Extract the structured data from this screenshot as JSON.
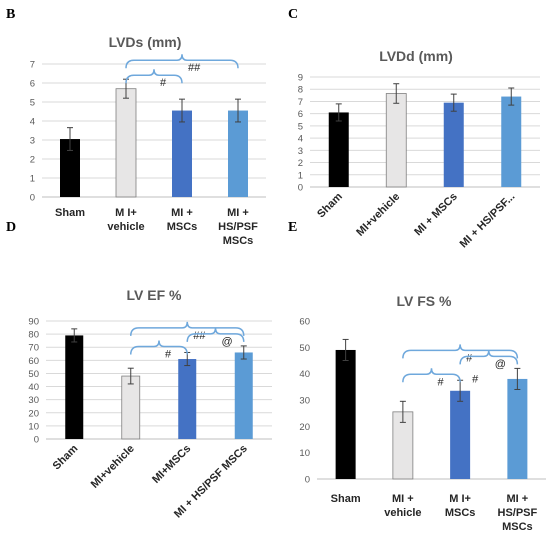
{
  "chart_data": [
    {
      "panel": "B",
      "type": "bar",
      "title": "LVDs (mm)",
      "categories": [
        "Sham",
        "M I+ vehicle",
        "MI + MSCs",
        "MI + HS/PSF MSCs"
      ],
      "values": [
        3.05,
        5.7,
        4.55,
        4.55
      ],
      "errors": [
        0.6,
        0.5,
        0.6,
        0.6
      ],
      "ylim": [
        0,
        7
      ],
      "yticks": [
        0,
        1,
        2,
        3,
        4,
        5,
        6,
        7
      ],
      "grid": true,
      "label_rotate": false,
      "colors": [
        "#000000",
        "#e7e6e6",
        "#4472c4",
        "#5b9bd5"
      ],
      "significance": [
        {
          "from": 1,
          "to": 2,
          "label": "#"
        },
        {
          "from": 1,
          "to": 3,
          "label": "##"
        }
      ]
    },
    {
      "panel": "C",
      "type": "bar",
      "title": "LVDd (mm)",
      "categories": [
        "Sham",
        "MI+vehicle",
        "MI + MSCs",
        "MI + HS/PSF..."
      ],
      "values": [
        6.1,
        7.65,
        6.9,
        7.4
      ],
      "errors": [
        0.7,
        0.8,
        0.7,
        0.7
      ],
      "ylim": [
        0,
        9
      ],
      "yticks": [
        0,
        1,
        2,
        3,
        4,
        5,
        6,
        7,
        8,
        9
      ],
      "grid": true,
      "label_rotate": true,
      "colors": [
        "#000000",
        "#e7e6e6",
        "#4472c4",
        "#5b9bd5"
      ],
      "significance": []
    },
    {
      "panel": "D",
      "type": "bar",
      "title": "LV EF %",
      "categories": [
        "Sham",
        "MI+vehicle",
        "MI+MSCs",
        "MI + HS/PSF MSCs"
      ],
      "values": [
        79,
        48,
        61,
        66
      ],
      "errors": [
        5,
        6,
        5,
        5
      ],
      "ylim": [
        0,
        90
      ],
      "yticks": [
        0,
        10,
        20,
        30,
        40,
        50,
        60,
        70,
        80,
        90
      ],
      "grid": true,
      "label_rotate": true,
      "colors": [
        "#000000",
        "#e7e6e6",
        "#4472c4",
        "#5b9bd5"
      ],
      "significance": [
        {
          "from": 1,
          "to": 2,
          "label": "#"
        },
        {
          "from": 1,
          "to": 3,
          "label": "##"
        },
        {
          "from": 2,
          "to": 3,
          "label": "@"
        }
      ]
    },
    {
      "panel": "E",
      "type": "bar",
      "title": "LV FS %",
      "categories": [
        "Sham",
        "MI + vehicle",
        "M I+ MSCs",
        "MI + HS/PSF MSCs"
      ],
      "values": [
        49,
        25.5,
        33.5,
        38
      ],
      "errors": [
        4,
        4,
        4,
        4
      ],
      "ylim": [
        0,
        60
      ],
      "yticks": [
        0,
        10,
        20,
        30,
        40,
        50,
        60
      ],
      "grid": false,
      "label_rotate": false,
      "colors": [
        "#000000",
        "#e7e6e6",
        "#4472c4",
        "#5b9bd5"
      ],
      "significance": [
        {
          "from": 1,
          "to": 2,
          "label": "#"
        },
        {
          "from": 1,
          "to": 3,
          "label": "#"
        },
        {
          "from": 2,
          "to": 3,
          "label": "@"
        }
      ],
      "extra_marks": [
        {
          "at": 2,
          "label": "#"
        }
      ]
    }
  ]
}
